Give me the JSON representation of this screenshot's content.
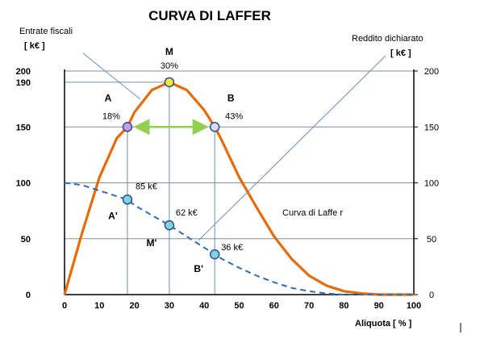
{
  "chart_data": {
    "type": "line",
    "title": "CURVA DI LAFFER",
    "xlabel": "Aliquota  [ % ]",
    "ylabel_left": [
      "Entrate fiscali",
      "[ k€ ]"
    ],
    "ylabel_right": [
      "Reddito dichiarato",
      "[ k€ ]"
    ],
    "xlim": [
      0,
      100
    ],
    "ylim": [
      0,
      200
    ],
    "x_ticks": [
      0,
      10,
      20,
      30,
      40,
      50,
      60,
      70,
      80,
      90,
      100
    ],
    "y_ticks_left": [
      0,
      50,
      100,
      150,
      190,
      200
    ],
    "y_ticks_right": [
      0,
      50,
      100,
      150,
      200
    ],
    "grid": true,
    "series": [
      {
        "name": "Curva di Laffer",
        "style": "solid",
        "color": "#E46C0A",
        "x": [
          0,
          5,
          10,
          15,
          18,
          20,
          25,
          30,
          35,
          40,
          43,
          45,
          50,
          55,
          60,
          65,
          70,
          75,
          80,
          85,
          90,
          95,
          100
        ],
        "y": [
          0,
          55,
          105,
          140,
          150,
          163,
          183,
          190,
          183,
          165,
          150,
          138,
          105,
          78,
          52,
          32,
          17,
          8,
          3,
          1,
          0,
          0,
          0
        ]
      },
      {
        "name": "",
        "style": "dashed",
        "color": "#2E6DB4",
        "x": [
          0,
          5,
          10,
          15,
          18,
          20,
          25,
          30,
          35,
          40,
          43,
          45,
          50,
          55,
          60,
          65,
          70,
          75,
          80,
          85,
          90,
          95,
          100
        ],
        "y": [
          100,
          98,
          93,
          88,
          85,
          80,
          71,
          62,
          52,
          42,
          36,
          32,
          24,
          17,
          11,
          6,
          3,
          1,
          0,
          0,
          0,
          0,
          0
        ]
      }
    ],
    "points": [
      {
        "name": "A",
        "x": 18,
        "y": 150,
        "label": "18%",
        "color": "#C99BEF"
      },
      {
        "name": "M",
        "x": 30,
        "y": 190,
        "label": "30%",
        "color": "#F5E93A"
      },
      {
        "name": "B",
        "x": 43,
        "y": 150,
        "label": "43%",
        "color": "#D9D9F2"
      },
      {
        "name": "A'",
        "x": 18,
        "y": 85,
        "label": "85 k€",
        "color": "#7FD4E0"
      },
      {
        "name": "M'",
        "x": 30,
        "y": 62,
        "label": "62 k€",
        "color": "#7FD4E0"
      },
      {
        "name": "B'",
        "x": 43,
        "y": 36,
        "label": "36 k€",
        "color": "#7FD4E0"
      }
    ],
    "arrow": {
      "from": 18,
      "to": 43,
      "y": 150,
      "color": "#92D050"
    },
    "curve_label": "Curva di Laffe r"
  }
}
